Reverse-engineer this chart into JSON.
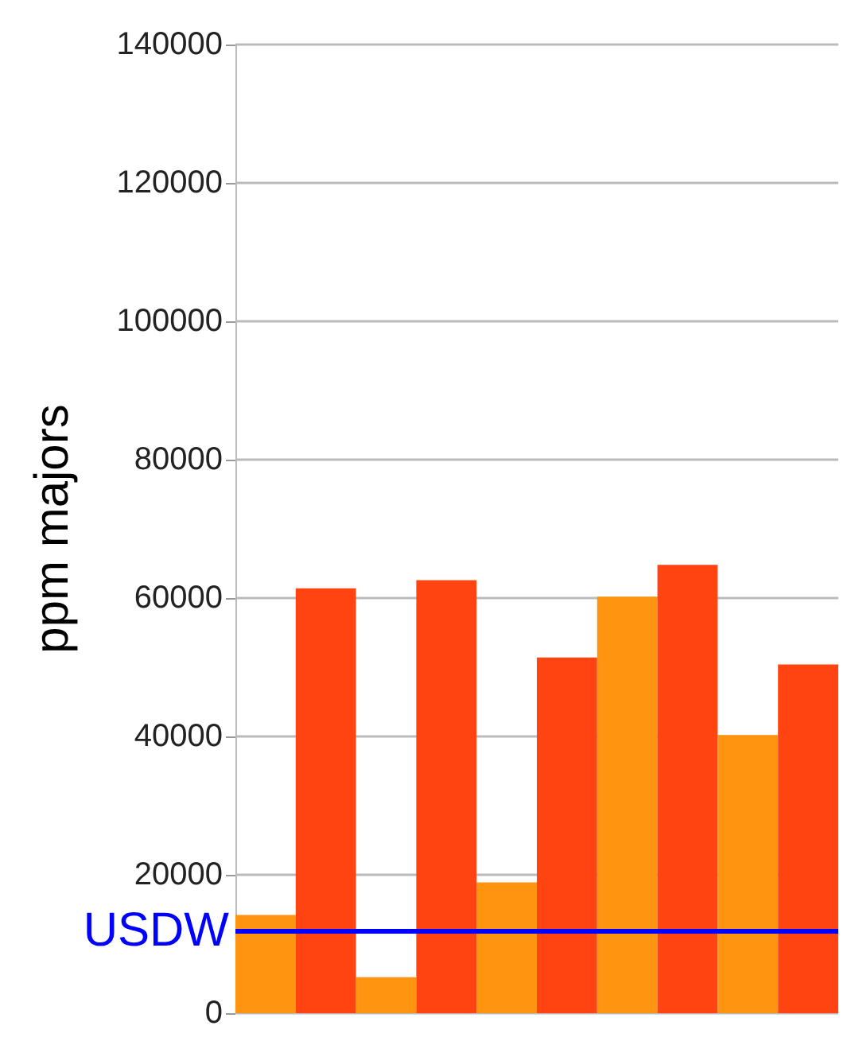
{
  "chart_data": {
    "type": "bar",
    "ylabel": "ppm majors",
    "categories": [
      null,
      null,
      null,
      null,
      null,
      null,
      null,
      null,
      null,
      null
    ],
    "values": [
      14200,
      61400,
      5200,
      62600,
      18900,
      51400,
      60200,
      64800,
      40200,
      50400
    ],
    "colors": [
      "#ff9410",
      "#ff4411",
      "#ff9410",
      "#ff4411",
      "#ff9410",
      "#ff4411",
      "#ff9410",
      "#ff4411",
      "#ff9410",
      "#ff4411"
    ],
    "ylim": [
      0,
      140000
    ],
    "yticks": [
      0,
      20000,
      40000,
      60000,
      80000,
      100000,
      120000,
      140000
    ],
    "grid": "y",
    "ref_lines": [
      {
        "axis": "y",
        "value": 12000,
        "label": "USDW",
        "color": "#0000ff",
        "line_style": "solid"
      }
    ]
  }
}
